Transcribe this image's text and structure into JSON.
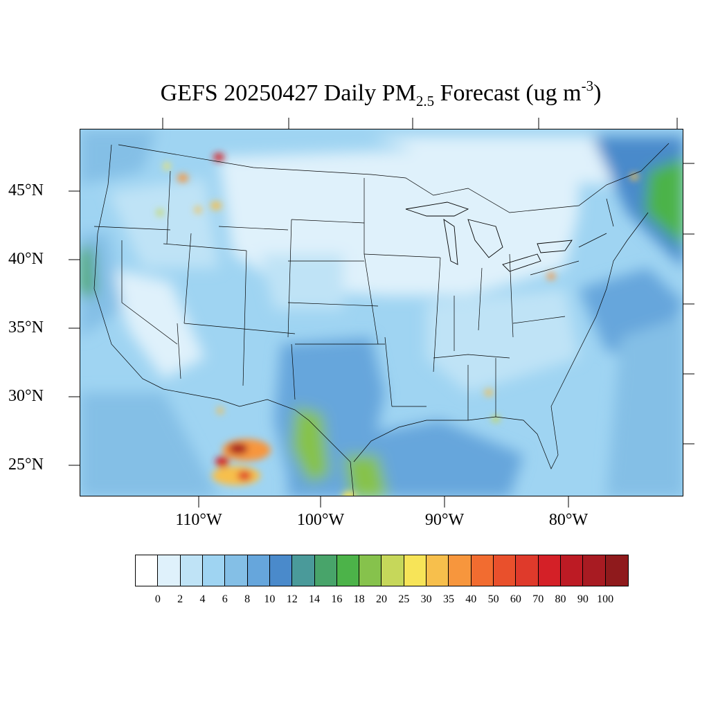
{
  "title": {
    "main": "GEFS 20250427 Daily PM",
    "subscript": "2.5",
    "rest": " Forecast (ug m",
    "superscript": "-3",
    "close": ")"
  },
  "axes": {
    "lat_labels": [
      "45°N",
      "40°N",
      "35°N",
      "30°N",
      "25°N"
    ],
    "lon_labels": [
      "110°W",
      "100°W",
      "90°W",
      "80°W"
    ]
  },
  "colorbar": {
    "labels": [
      "0",
      "2",
      "4",
      "6",
      "8",
      "10",
      "12",
      "14",
      "16",
      "18",
      "20",
      "25",
      "30",
      "35",
      "40",
      "50",
      "60",
      "70",
      "80",
      "90",
      "100"
    ],
    "colors": [
      "#ffffff",
      "#dff1fb",
      "#bfe3f6",
      "#9fd4f2",
      "#84bfe6",
      "#66a6dc",
      "#4a8acb",
      "#4a9a9a",
      "#48a46a",
      "#4cb349",
      "#86c24c",
      "#c6d75a",
      "#f7e458",
      "#f7bf4c",
      "#f7963d",
      "#f26c30",
      "#e9502c",
      "#df3a2b",
      "#d42027",
      "#bd1b24",
      "#a81b22",
      "#8f1a1c"
    ]
  }
}
